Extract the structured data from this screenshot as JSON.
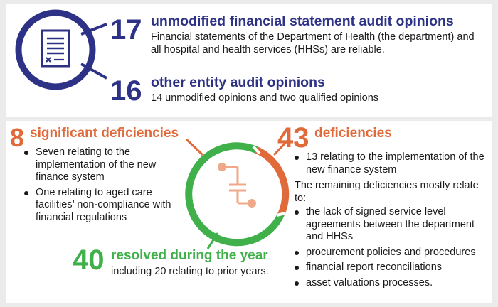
{
  "top": {
    "stat1": {
      "number": "17",
      "title": "unmodified financial statement audit opinions",
      "desc_line1": "Financial statements of the Department of Health (the department) and",
      "desc_line2": "all hospital and health services (HHSs) are reliable."
    },
    "stat2": {
      "number": "16",
      "title": "other entity audit opinions",
      "desc": "14 unmodified opinions and two qualified opinions"
    },
    "icon": "audit-document-icon"
  },
  "bottom": {
    "significant": {
      "number": "8",
      "title": "significant deficiencies",
      "items": [
        "Seven relating to the implementation of the new finance system",
        "One relating to aged care facilities’ non-compliance with financial regulations"
      ]
    },
    "deficiencies": {
      "number": "43",
      "title": "deficiencies",
      "items": [
        "13 relating to the implementation of the new finance system"
      ],
      "remaining_intro": "The remaining deficiencies mostly relate to:",
      "remaining_items": [
        "the lack of signed service level agreements between the department and HHSs",
        "procurement policies and procedures",
        "financial report reconciliations",
        "asset valuations processes."
      ]
    },
    "resolved": {
      "number": "40",
      "title": "resolved during the year",
      "desc": "including 20 relating to prior years."
    },
    "icon": "circuit-connector-icon"
  },
  "colors": {
    "navy": "#2d3286",
    "orange": "#e06a3a",
    "green": "#3fb04a",
    "background": "#ebebeb"
  }
}
